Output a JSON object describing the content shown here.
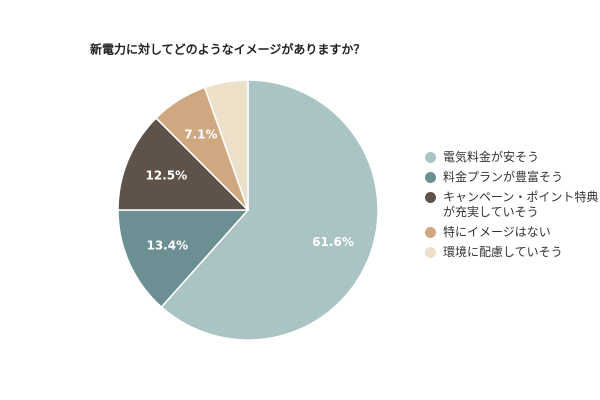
{
  "chart_data": {
    "type": "pie",
    "title": "新電力に対してどのようなイメージがありますか？",
    "categories": [
      "電気料金が安そう",
      "料金プランが豊富そう",
      "キャンペーン・ポイント特典が充実していそう",
      "特にイメージはない",
      "環境に配慮していそう"
    ],
    "values": [
      61.6,
      13.4,
      12.5,
      7.1,
      5.4
    ],
    "value_labels": [
      "61.6%",
      "13.4%",
      "12.5%",
      "7.1%",
      null
    ],
    "colors": [
      "#aac3c3",
      "#6b8f93",
      "#5f5248",
      "#cfa882",
      "#ede0c8"
    ],
    "legend": "right"
  }
}
